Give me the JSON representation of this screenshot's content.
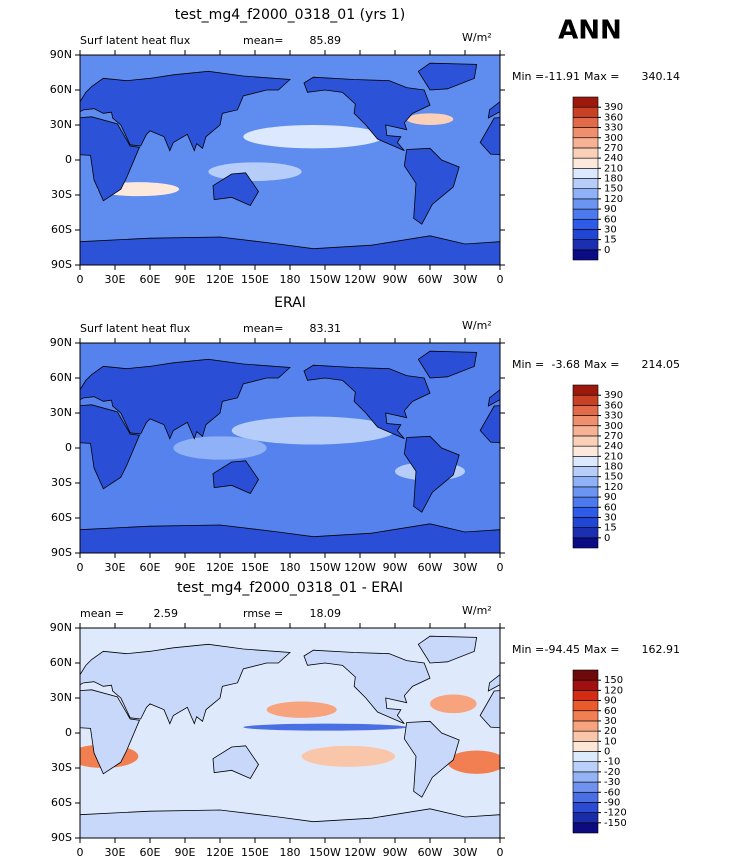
{
  "header": "ANN",
  "chart_data": [
    {
      "type": "map",
      "title": "test_mg4_f2000_0318_01 (yrs 1)",
      "variable": "Surf latent heat flux",
      "units": "W/m²",
      "stats": [
        {
          "label": "mean=",
          "value": 85.89
        }
      ],
      "min_label": "Min =",
      "min": -11.91,
      "max_label": "Max =",
      "max": 340.14,
      "xlim": [
        0,
        360
      ],
      "ylim": [
        -90,
        90
      ],
      "xticks": [
        0,
        {
          "value": 30,
          "label": "30E"
        },
        {
          "value": 60,
          "label": "60E"
        },
        {
          "value": 90,
          "label": "90E"
        },
        {
          "value": 120,
          "label": "120E"
        },
        {
          "value": 150,
          "label": "150E"
        },
        {
          "value": 180,
          "label": "180"
        },
        {
          "value": 210,
          "label": "150W"
        },
        {
          "value": 240,
          "label": "120W"
        },
        {
          "value": 270,
          "label": "90W"
        },
        {
          "value": 300,
          "label": "60W"
        },
        {
          "value": 330,
          "label": "30W"
        },
        {
          "value": 360,
          "label": "0"
        }
      ],
      "yticks": [
        {
          "value": -90,
          "label": "90S"
        },
        {
          "value": -60,
          "label": "60S"
        },
        {
          "value": -30,
          "label": "30S"
        },
        0,
        {
          "value": 30,
          "label": "30N"
        },
        {
          "value": 60,
          "label": "60N"
        },
        {
          "value": 90,
          "label": "90N"
        }
      ],
      "colorbar": {
        "levels": [
          0,
          15,
          30,
          60,
          90,
          120,
          150,
          180,
          210,
          240,
          270,
          300,
          330,
          360,
          390
        ],
        "colors": [
          "#0b0b85",
          "#1c2fb0",
          "#2146d4",
          "#2e5be8",
          "#4d79ef",
          "#6c95f3",
          "#8fb1f7",
          "#b6cdfa",
          "#dce8fd",
          "#fde9dc",
          "#fbd0b8",
          "#f7b194",
          "#f08f6e",
          "#e36a48",
          "#c94125",
          "#9c1a0d"
        ]
      }
    },
    {
      "type": "map",
      "title": "ERAI",
      "variable": "Surf latent heat flux",
      "units": "W/m²",
      "stats": [
        {
          "label": "mean=",
          "value": 83.31
        }
      ],
      "min_label": "Min =",
      "min": -3.68,
      "max_label": "Max =",
      "max": 214.05,
      "xlim": [
        0,
        360
      ],
      "ylim": [
        -90,
        90
      ],
      "xticks": [
        0,
        {
          "value": 30,
          "label": "30E"
        },
        {
          "value": 60,
          "label": "60E"
        },
        {
          "value": 90,
          "label": "90E"
        },
        {
          "value": 120,
          "label": "120E"
        },
        {
          "value": 150,
          "label": "150E"
        },
        {
          "value": 180,
          "label": "180"
        },
        {
          "value": 210,
          "label": "150W"
        },
        {
          "value": 240,
          "label": "120W"
        },
        {
          "value": 270,
          "label": "90W"
        },
        {
          "value": 300,
          "label": "60W"
        },
        {
          "value": 330,
          "label": "30W"
        },
        {
          "value": 360,
          "label": "0"
        }
      ],
      "yticks": [
        {
          "value": -90,
          "label": "90S"
        },
        {
          "value": -60,
          "label": "60S"
        },
        {
          "value": -30,
          "label": "30S"
        },
        0,
        {
          "value": 30,
          "label": "30N"
        },
        {
          "value": 60,
          "label": "60N"
        },
        {
          "value": 90,
          "label": "90N"
        }
      ],
      "colorbar": {
        "levels": [
          0,
          15,
          30,
          60,
          90,
          120,
          150,
          180,
          210,
          240,
          270,
          300,
          330,
          360,
          390
        ],
        "colors": [
          "#0b0b85",
          "#1c2fb0",
          "#2146d4",
          "#2e5be8",
          "#4d79ef",
          "#6c95f3",
          "#8fb1f7",
          "#b6cdfa",
          "#dce8fd",
          "#fde9dc",
          "#fbd0b8",
          "#f7b194",
          "#f08f6e",
          "#e36a48",
          "#c94125",
          "#9c1a0d"
        ]
      }
    },
    {
      "type": "map",
      "title": "test_mg4_f2000_0318_01 - ERAI",
      "units": "W/m²",
      "stats": [
        {
          "label": "mean =",
          "value": 2.59
        },
        {
          "label": "rmse =",
          "value": 18.09
        }
      ],
      "min_label": "Min =",
      "min": -94.45,
      "max_label": "Max =",
      "max": 162.91,
      "xlim": [
        0,
        360
      ],
      "ylim": [
        -90,
        90
      ],
      "xticks": [
        0,
        {
          "value": 30,
          "label": "30E"
        },
        {
          "value": 60,
          "label": "60E"
        },
        {
          "value": 90,
          "label": "90E"
        },
        {
          "value": 120,
          "label": "120E"
        },
        {
          "value": 150,
          "label": "150E"
        },
        {
          "value": 180,
          "label": "180"
        },
        {
          "value": 210,
          "label": "150W"
        },
        {
          "value": 240,
          "label": "120W"
        },
        {
          "value": 270,
          "label": "90W"
        },
        {
          "value": 300,
          "label": "60W"
        },
        {
          "value": 330,
          "label": "30W"
        },
        {
          "value": 360,
          "label": "0"
        }
      ],
      "yticks": [
        {
          "value": -90,
          "label": "90S"
        },
        {
          "value": -60,
          "label": "60S"
        },
        {
          "value": -30,
          "label": "30S"
        },
        0,
        {
          "value": 30,
          "label": "30N"
        },
        {
          "value": 60,
          "label": "60N"
        },
        {
          "value": 90,
          "label": "90N"
        }
      ],
      "colorbar": {
        "levels": [
          -150,
          -120,
          -90,
          -60,
          -30,
          -20,
          -10,
          0,
          10,
          20,
          30,
          60,
          90,
          120,
          150
        ],
        "colors": [
          "#0c0c80",
          "#1a2ca8",
          "#2a4bd2",
          "#4a6fe4",
          "#6f92ee",
          "#94b3f5",
          "#b9d0fa",
          "#dceafd",
          "#fde6d6",
          "#fac6aa",
          "#f6a37e",
          "#f27f52",
          "#ea5a2c",
          "#d42c14",
          "#a01010",
          "#6d0a0a"
        ]
      }
    }
  ]
}
